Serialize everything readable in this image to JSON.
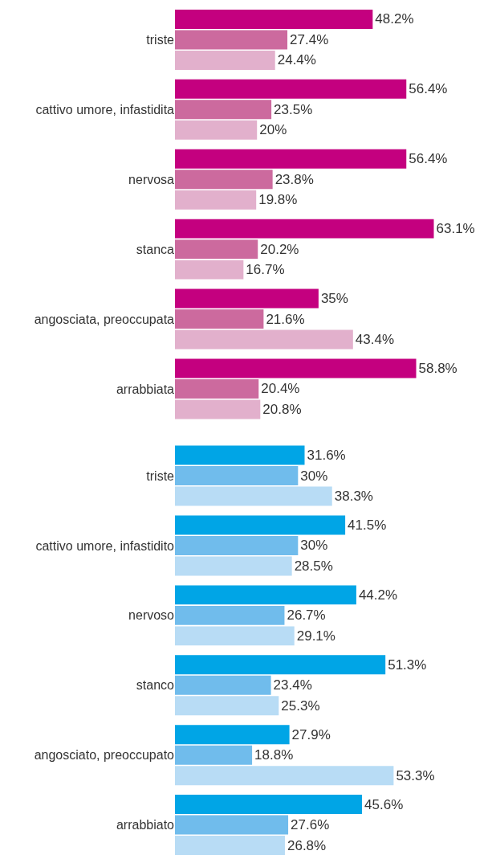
{
  "chart_data": [
    {
      "type": "bar",
      "orientation": "horizontal",
      "categories": [
        "triste",
        "cattivo umore, infastidita",
        "nervosa",
        "stanca",
        "angosciata, preoccupata",
        "arrabbiata"
      ],
      "series": [
        {
          "color": "#c4007f",
          "values": [
            48.2,
            56.4,
            56.4,
            63.1,
            35,
            58.8
          ],
          "value_labels": [
            "48.2%",
            "56.4%",
            "56.4%",
            "63.1%",
            "35%",
            "58.8%"
          ]
        },
        {
          "color": "#cc6a9e",
          "values": [
            27.4,
            23.5,
            23.8,
            20.2,
            21.6,
            20.4
          ],
          "value_labels": [
            "27.4%",
            "23.5%",
            "23.8%",
            "20.2%",
            "21.6%",
            "20.4%"
          ]
        },
        {
          "color": "#e2b0cc",
          "values": [
            24.4,
            20,
            19.8,
            16.7,
            43.4,
            20.8
          ],
          "value_labels": [
            "24.4%",
            "20%",
            "19.8%",
            "16.7%",
            "43.4%",
            "20.8%"
          ]
        }
      ],
      "tick_labels": "y"
    },
    {
      "type": "bar",
      "orientation": "horizontal",
      "categories": [
        "triste",
        "cattivo umore, infastidito",
        "nervoso",
        "stanco",
        "angosciato, preoccupato",
        "arrabbiato"
      ],
      "series": [
        {
          "color": "#00a5e6",
          "values": [
            31.6,
            41.5,
            44.2,
            51.3,
            27.9,
            45.6
          ],
          "value_labels": [
            "31.6%",
            "41.5%",
            "44.2%",
            "51.3%",
            "27.9%",
            "45.6%"
          ]
        },
        {
          "color": "#70bcec",
          "values": [
            30,
            30,
            26.7,
            23.4,
            18.8,
            27.6
          ],
          "value_labels": [
            "30%",
            "30%",
            "26.7%",
            "23.4%",
            "18.8%",
            "27.6%"
          ]
        },
        {
          "color": "#b8dcf5",
          "values": [
            38.3,
            28.5,
            29.1,
            25.3,
            53.3,
            26.8
          ],
          "value_labels": [
            "38.3%",
            "28.5%",
            "29.1%",
            "25.3%",
            "53.3%",
            "26.8%"
          ]
        }
      ],
      "tick_labels": "y"
    }
  ]
}
